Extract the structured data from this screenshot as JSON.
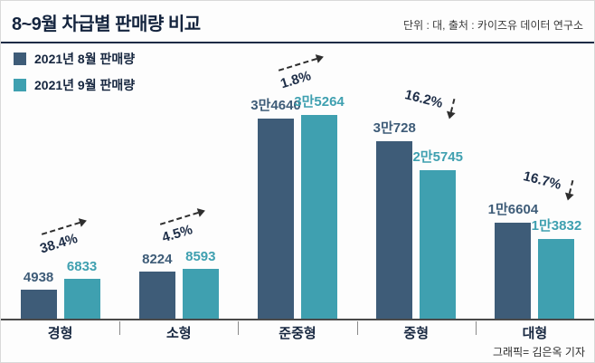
{
  "header": {
    "title": "8~9월 차급별 판매량 비교",
    "source": "단위 : 대, 출처 : 카이즈유 데이터 연구소"
  },
  "footer": {
    "credit": "그래픽= 김은옥 기자"
  },
  "chart_data": {
    "type": "bar",
    "title": "8~9월 차급별 판매량 비교",
    "unit": "대",
    "categories": [
      "경형",
      "소형",
      "준중형",
      "중형",
      "대형"
    ],
    "series": [
      {
        "name": "2021년 8월 판매량",
        "values": [
          4938,
          8224,
          34640,
          30728,
          16604
        ],
        "labels": [
          "4938",
          "8224",
          "3만4640",
          "3만728",
          "1만6604"
        ],
        "color": "#3e5c78"
      },
      {
        "name": "2021년 9월 판매량",
        "values": [
          6833,
          8593,
          35264,
          25745,
          13832
        ],
        "labels": [
          "6833",
          "8593",
          "3만5264",
          "2만5745",
          "1만3832"
        ],
        "color": "#3fa0b0"
      }
    ],
    "changes": [
      {
        "label": "38.4%",
        "direction": "up"
      },
      {
        "label": "4.5%",
        "direction": "up"
      },
      {
        "label": "1.8%",
        "direction": "up"
      },
      {
        "label": "16.2%",
        "direction": "down"
      },
      {
        "label": "16.7%",
        "direction": "down"
      }
    ],
    "ylim": [
      0,
      36000
    ],
    "grid": false,
    "legend_position": "top-left"
  }
}
